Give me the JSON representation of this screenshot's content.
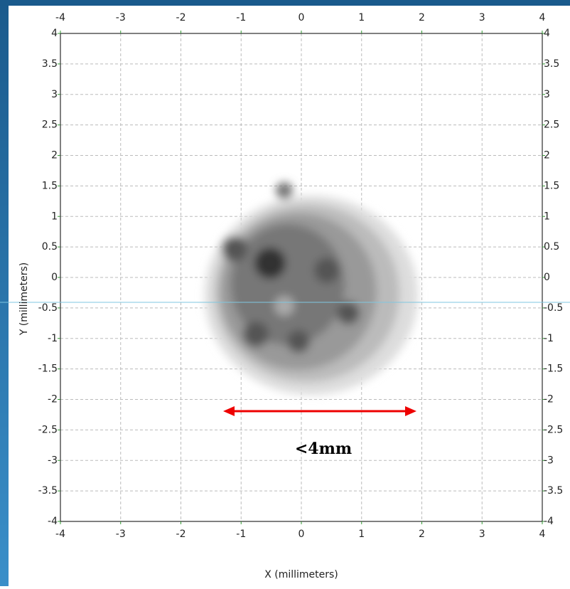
{
  "chart_data": {
    "type": "contour",
    "xlabel": "X (millimeters)",
    "ylabel": "Y (millimeters)",
    "annotation": "<4mm",
    "xlim": [
      -4,
      4
    ],
    "ylim": [
      -4,
      4
    ],
    "xticks": [
      -4,
      -3,
      -2,
      -1,
      0,
      1,
      2,
      3,
      4
    ],
    "yticks": [
      -4,
      -3.5,
      -3,
      -2.5,
      -2,
      -1.5,
      -1,
      -0.5,
      0,
      0.5,
      1,
      1.5,
      2,
      2.5,
      3,
      3.5,
      4
    ],
    "grid": true
  }
}
